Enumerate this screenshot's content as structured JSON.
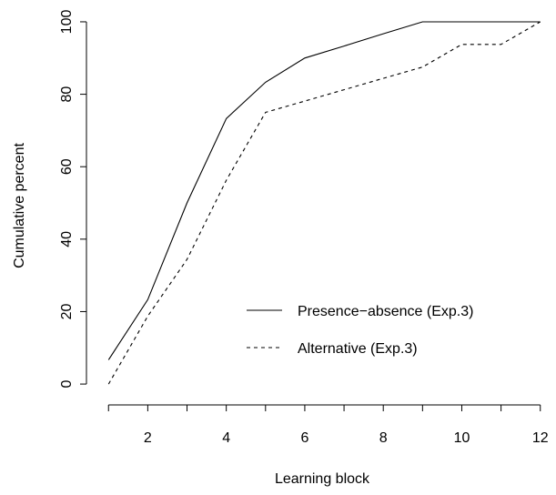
{
  "chart_data": {
    "type": "line",
    "title": "",
    "xlabel": "Learning block",
    "ylabel": "Cumulative percent",
    "xlim": [
      0.6,
      12.4
    ],
    "ylim": [
      -4,
      102
    ],
    "x_ticks": [
      2,
      4,
      6,
      8,
      10,
      12
    ],
    "y_ticks": [
      0,
      20,
      40,
      60,
      80,
      100
    ],
    "grid": false,
    "legend_position": "bottom-right",
    "series": [
      {
        "name": "Presence−absence (Exp.3)",
        "line_style": "solid",
        "x": [
          1,
          2,
          3,
          4,
          5,
          6,
          7,
          8,
          9,
          10,
          11,
          12
        ],
        "values": [
          6.7,
          23.3,
          50,
          73.3,
          83.3,
          90,
          93.3,
          96.7,
          100,
          100,
          100,
          100
        ]
      },
      {
        "name": "Alternative (Exp.3)",
        "line_style": "dashed",
        "x": [
          1,
          2,
          3,
          4,
          5,
          6,
          7,
          8,
          9,
          10,
          11,
          12
        ],
        "values": [
          0,
          18.75,
          34.4,
          56.25,
          75,
          78.1,
          81.25,
          84.4,
          87.5,
          93.75,
          93.75,
          100
        ]
      }
    ]
  }
}
